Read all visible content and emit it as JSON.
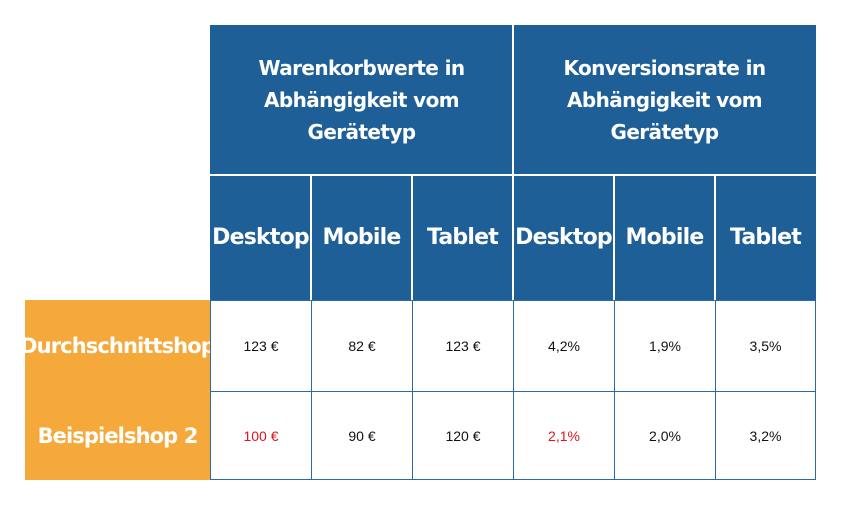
{
  "colors": {
    "header_bg": "#1f5f97",
    "row_label_bg": "#f6a93b",
    "highlight_text": "#e0141e",
    "border": "#2a6aa6"
  },
  "table": {
    "group_headers": [
      {
        "line1": "Warenkorbwerte in",
        "line2": "Abhängigkeit vom Gerätetyp"
      },
      {
        "line1": "Konversionsrate in",
        "line2": "Abhängigkeit vom Gerätetyp"
      }
    ],
    "device_headers": [
      "Desktop",
      "Mobile",
      "Tablet",
      "Desktop",
      "Mobile",
      "Tablet"
    ],
    "rows": [
      {
        "label": "Durchschnittshop",
        "values": [
          "123 €",
          "82 €",
          "123 €",
          "4,2%",
          "1,9%",
          "3,5%"
        ],
        "highlight": [
          false,
          false,
          false,
          false,
          false,
          false
        ]
      },
      {
        "label": "Beispielshop 2",
        "values": [
          "100 €",
          "90 €",
          "120 €",
          "2,1%",
          "2,0%",
          "3,2%"
        ],
        "highlight": [
          true,
          false,
          false,
          true,
          false,
          false
        ]
      }
    ]
  }
}
